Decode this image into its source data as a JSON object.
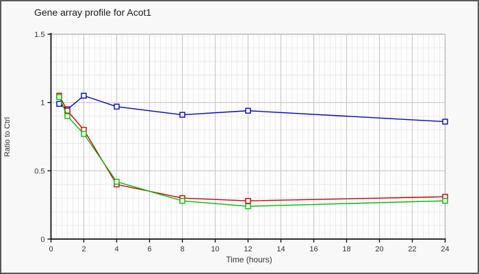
{
  "window": {
    "background": "#f8f8f8",
    "border_color": "#585858",
    "plot_background": "#fdfdfd",
    "major_grid_color": "#c9c9c9",
    "minor_grid_color": "#ececec",
    "axis_color": "#111111",
    "tick_label_color": "#333333"
  },
  "title": "Gene array profile for Acot1",
  "chart_data": {
    "type": "line",
    "title": "Gene array profile for Acot1",
    "xlabel": "Time (hours)",
    "ylabel": "Ratio to Ctrl",
    "xlim": [
      0,
      24
    ],
    "ylim": [
      0,
      1.5
    ],
    "x_ticks": [
      0,
      2,
      4,
      6,
      8,
      10,
      12,
      14,
      16,
      18,
      20,
      22,
      24
    ],
    "y_ticks": [
      0,
      0.5,
      1,
      1.5
    ],
    "y_tick_labels": [
      "0",
      "0.5",
      "1",
      "1.5"
    ],
    "x_minor_step": 0.3333333,
    "y_minor_step": 0.1,
    "grid": true,
    "legend": "none",
    "marker": "open-square",
    "x": [
      0.5,
      1,
      2,
      4,
      8,
      12,
      24
    ],
    "series": [
      {
        "name": "blue-series",
        "color": "#0000cc",
        "values": [
          0.99,
          0.95,
          1.05,
          0.97,
          0.91,
          0.94,
          0.86
        ]
      },
      {
        "name": "red-series",
        "color": "#cc0000",
        "values": [
          1.05,
          0.94,
          0.8,
          0.4,
          0.3,
          0.28,
          0.31
        ]
      },
      {
        "name": "green-series",
        "color": "#00bb00",
        "values": [
          1.04,
          0.9,
          0.77,
          0.42,
          0.28,
          0.24,
          0.28
        ]
      }
    ]
  }
}
